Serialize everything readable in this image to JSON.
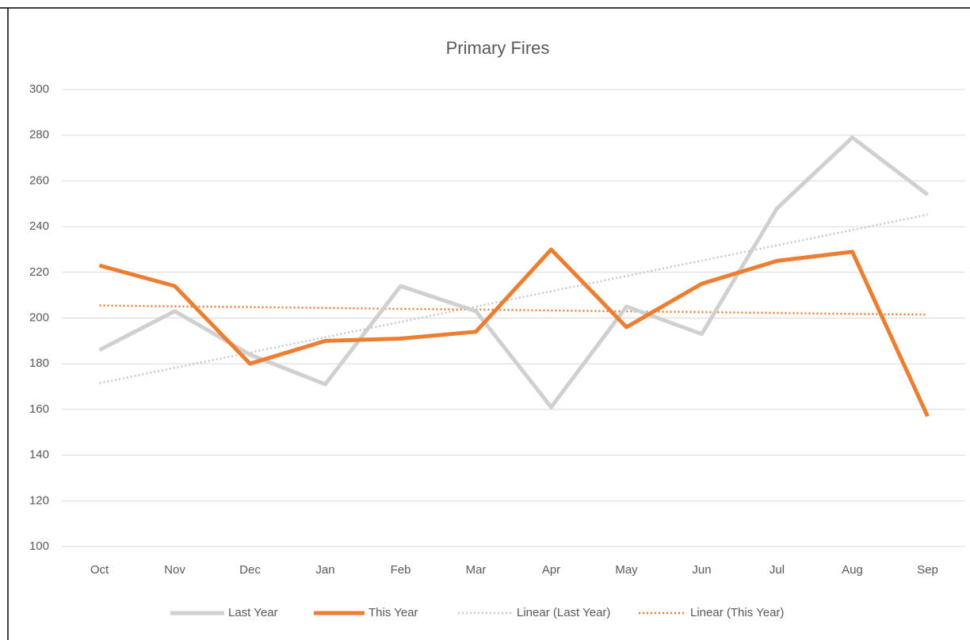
{
  "chart_data": {
    "type": "line",
    "title": "Primary Fires",
    "categories": [
      "Oct",
      "Nov",
      "Dec",
      "Jan",
      "Feb",
      "Mar",
      "Apr",
      "May",
      "Jun",
      "Jul",
      "Aug",
      "Sep"
    ],
    "series": [
      {
        "name": "Last Year",
        "color": "#d0d0d0",
        "style": "solid",
        "values": [
          186,
          203,
          184,
          171,
          214,
          203,
          161,
          205,
          193,
          248,
          279,
          254
        ]
      },
      {
        "name": "This Year",
        "color": "#ed7d31",
        "style": "solid",
        "values": [
          223,
          214,
          180,
          190,
          191,
          194,
          230,
          196,
          215,
          225,
          229,
          157
        ]
      },
      {
        "name": "Linear (Last Year)",
        "color": "#c8c8c8",
        "style": "dotted",
        "values": [
          171.5,
          178.2,
          184.9,
          191.6,
          198.3,
          205,
          211.7,
          218.4,
          225.1,
          231.8,
          238.5,
          245.2
        ]
      },
      {
        "name": "Linear (This Year)",
        "color": "#ed7d31",
        "style": "dotted",
        "values": [
          205.5,
          205.1,
          204.8,
          204.4,
          204.0,
          203.7,
          203.3,
          202.9,
          202.6,
          202.2,
          201.8,
          201.5
        ]
      }
    ],
    "ylim": [
      100,
      300
    ],
    "yticks": [
      100,
      120,
      140,
      160,
      180,
      200,
      220,
      240,
      260,
      280,
      300
    ],
    "grid": true,
    "legend": "bottom"
  }
}
